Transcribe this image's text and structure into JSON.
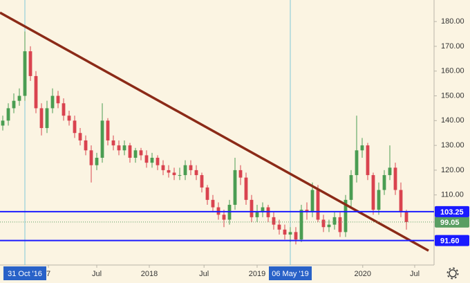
{
  "chart_data": {
    "type": "candlestick",
    "categories": [
      null,
      null,
      null,
      null,
      null,
      null,
      null,
      null,
      null,
      null,
      null,
      null,
      null,
      null,
      null,
      null,
      null,
      null,
      null,
      null,
      null,
      null,
      null,
      null,
      null,
      null,
      null,
      null,
      null,
      null,
      null,
      null,
      null,
      null,
      null,
      null,
      null,
      null,
      null,
      null,
      null,
      null,
      null,
      null,
      null,
      null,
      null,
      null,
      null,
      null,
      null,
      null,
      null,
      null,
      null,
      null,
      null,
      null,
      null,
      null,
      null,
      null,
      null,
      null,
      null,
      null,
      null,
      null,
      null,
      null,
      null,
      null,
      null,
      null
    ],
    "open": [
      138,
      140,
      145,
      148,
      150,
      168,
      158,
      145,
      137,
      145,
      150,
      147,
      142,
      140,
      135,
      132,
      128,
      122,
      125,
      140,
      132,
      130,
      128,
      130,
      125,
      128,
      126,
      123,
      125,
      122,
      120,
      119,
      118,
      118,
      122,
      120,
      118,
      113,
      108,
      105,
      102,
      100,
      106,
      120,
      117,
      108,
      101,
      103,
      105,
      101,
      98,
      96,
      94,
      95,
      92,
      104,
      103,
      112,
      100,
      97,
      98,
      101,
      95,
      108,
      118,
      128,
      130,
      118,
      104,
      112,
      118,
      121,
      112,
      103
    ],
    "high": [
      142,
      147,
      151,
      153,
      176,
      170,
      160,
      147,
      148,
      153,
      152,
      149,
      144,
      142,
      137,
      134,
      130,
      127,
      147,
      141,
      134,
      132,
      132,
      131,
      129,
      129,
      128,
      127,
      126,
      124,
      122,
      121,
      121,
      124,
      124,
      122,
      119,
      114,
      110,
      107,
      104,
      108,
      125,
      122,
      119,
      110,
      106,
      107,
      106,
      103,
      100,
      98,
      97,
      97,
      106,
      107,
      115,
      114,
      102,
      100,
      103,
      103,
      110,
      120,
      142,
      133,
      131,
      119,
      115,
      120,
      130,
      123,
      115,
      104
    ],
    "low": [
      136,
      138,
      143,
      146,
      148,
      156,
      143,
      134,
      135,
      143,
      145,
      140,
      138,
      133,
      130,
      126,
      115,
      120,
      123,
      130,
      128,
      126,
      126,
      123,
      123,
      124,
      121,
      121,
      120,
      118,
      117,
      116,
      116,
      116,
      118,
      116,
      111,
      106,
      103,
      100,
      97,
      98,
      104,
      114,
      106,
      99,
      99,
      101,
      99,
      96,
      94,
      92,
      91,
      90,
      91,
      100,
      101,
      99,
      95,
      95,
      96,
      93,
      93,
      105,
      115,
      125,
      116,
      102,
      102,
      110,
      116,
      110,
      101,
      96
    ],
    "close": [
      140,
      145,
      148,
      150,
      168,
      158,
      145,
      137,
      145,
      150,
      147,
      142,
      140,
      135,
      132,
      128,
      122,
      125,
      140,
      132,
      130,
      128,
      130,
      125,
      128,
      126,
      123,
      125,
      122,
      120,
      119,
      118,
      118,
      122,
      120,
      118,
      113,
      108,
      105,
      102,
      100,
      106,
      120,
      117,
      108,
      101,
      103,
      105,
      101,
      98,
      96,
      94,
      95,
      92,
      104,
      103,
      112,
      100,
      97,
      98,
      101,
      95,
      108,
      118,
      128,
      130,
      118,
      104,
      112,
      118,
      121,
      112,
      103,
      99.05
    ],
    "up_color": "#4a9d52",
    "down_color": "#d9434f",
    "xlim": [
      -0.5,
      78
    ],
    "ylim": [
      81.7,
      188.7
    ],
    "yticks": [
      {
        "value": 110,
        "label": "110.00"
      },
      {
        "value": 120,
        "label": "120.00"
      },
      {
        "value": 130,
        "label": "130.00"
      },
      {
        "value": 140,
        "label": "140.00"
      },
      {
        "value": 150,
        "label": "150.00"
      },
      {
        "value": 160,
        "label": "160.00"
      },
      {
        "value": 170,
        "label": "170.00"
      },
      {
        "value": 180,
        "label": "180.00"
      }
    ],
    "xticks": [
      {
        "value": 8.25,
        "label": "7"
      },
      {
        "value": 17,
        "label": "Jul"
      },
      {
        "value": 26.5,
        "label": "2018"
      },
      {
        "value": 36.4,
        "label": "Jul"
      },
      {
        "value": 46,
        "label": "2019"
      },
      {
        "value": 65.1,
        "label": "2020"
      },
      {
        "value": 74.5,
        "label": "Jul"
      }
    ],
    "hlines": [
      {
        "value": 103.25,
        "color": "#1a1aff"
      },
      {
        "value": {
          "value": 91.6,
          "label": "91.60"
        },
        "color": "#1a1aff"
      }
    ],
    "last_price": 99.05,
    "last_color": "#5a9e62",
    "trendline": {
      "x": [
        -0.5,
        77
      ],
      "y": [
        183.6,
        87.5
      ],
      "color": "#8b2a17"
    },
    "markers": [
      {
        "x": 4,
        "label": "31 Oct '16"
      },
      {
        "x": 52,
        "label": "06 May '19"
      }
    ],
    "marker_color": "#2962c8"
  }
}
